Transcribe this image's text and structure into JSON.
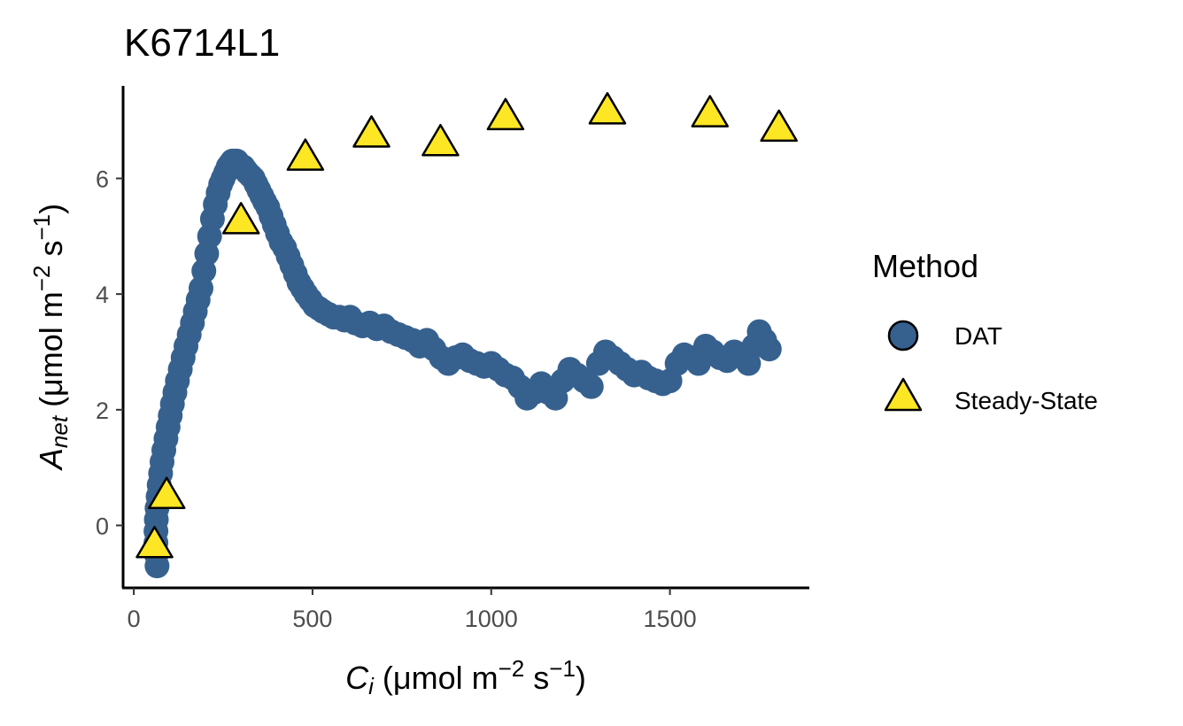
{
  "chart_data": {
    "type": "scatter",
    "title": "K6714L1",
    "xlabel": {
      "main": "C",
      "sub": "i",
      "unit_open": " (μmol m",
      "sup1": "−2",
      "unit_mid": " s",
      "sup2": "−1",
      "unit_close": ")"
    },
    "ylabel": {
      "main": "A",
      "sub": "net",
      "unit_open": " (μmol m",
      "sup1": "−2",
      "unit_mid": " s",
      "sup2": "−1",
      "unit_close": ")"
    },
    "xlim": [
      -30,
      1890
    ],
    "ylim": [
      -1.08,
      7.6
    ],
    "x_ticks": [
      0,
      500,
      1000,
      1500
    ],
    "x_tick_labels": [
      "0",
      "500",
      "1000",
      "1500"
    ],
    "y_ticks": [
      0,
      2,
      4,
      6
    ],
    "y_tick_labels": [
      "0",
      "2",
      "4",
      "6"
    ],
    "grid": false,
    "legend": {
      "title": "Method",
      "position": "right",
      "entries": [
        {
          "label": "DAT",
          "shape": "circle",
          "color": "#36618f"
        },
        {
          "label": "Steady-State",
          "shape": "triangle",
          "color": "#fde725"
        }
      ]
    },
    "series": [
      {
        "name": "DAT",
        "shape": "circle",
        "color": "#36618f",
        "x": [
          65,
          63,
          62,
          62,
          63,
          65,
          68,
          71,
          75,
          79,
          84,
          90,
          96,
          102,
          108,
          115,
          122,
          130,
          138,
          146,
          155,
          164,
          172,
          180,
          188,
          196,
          204,
          212,
          220,
          228,
          236,
          243,
          250,
          257,
          264,
          270,
          276,
          282,
          288,
          294,
          300,
          306,
          312,
          318,
          326,
          334,
          342,
          350,
          358,
          366,
          375,
          384,
          393,
          402,
          412,
          422,
          432,
          442,
          452,
          462,
          472,
          482,
          494,
          506,
          518,
          530,
          545,
          560,
          575,
          590,
          605,
          620,
          640,
          660,
          680,
          700,
          720,
          740,
          760,
          780,
          800,
          820,
          840,
          860,
          880,
          900,
          920,
          940,
          960,
          980,
          1000,
          1020,
          1040,
          1060,
          1080,
          1100,
          1120,
          1140,
          1160,
          1180,
          1200,
          1220,
          1240,
          1260,
          1280,
          1300,
          1320,
          1340,
          1360,
          1380,
          1400,
          1420,
          1440,
          1460,
          1480,
          1500,
          1520,
          1540,
          1560,
          1580,
          1600,
          1620,
          1640,
          1660,
          1680,
          1700,
          1720,
          1735,
          1750,
          1765,
          1778
        ],
        "y": [
          -0.7,
          -0.5,
          -0.3,
          -0.1,
          0.1,
          0.3,
          0.5,
          0.7,
          0.9,
          1.1,
          1.3,
          1.5,
          1.7,
          1.9,
          2.1,
          2.3,
          2.5,
          2.7,
          2.9,
          3.1,
          3.3,
          3.5,
          3.7,
          3.9,
          4.1,
          4.4,
          4.7,
          5.0,
          5.3,
          5.55,
          5.75,
          5.9,
          6.0,
          6.1,
          6.2,
          6.25,
          6.3,
          6.3,
          6.3,
          6.25,
          6.2,
          6.2,
          6.15,
          6.1,
          6.05,
          6.0,
          5.9,
          5.8,
          5.7,
          5.6,
          5.5,
          5.35,
          5.2,
          5.05,
          4.9,
          4.8,
          4.65,
          4.5,
          4.35,
          4.2,
          4.1,
          4.0,
          3.9,
          3.8,
          3.75,
          3.7,
          3.65,
          3.6,
          3.6,
          3.55,
          3.6,
          3.5,
          3.45,
          3.5,
          3.4,
          3.45,
          3.35,
          3.3,
          3.25,
          3.2,
          3.1,
          3.2,
          3.05,
          2.9,
          2.8,
          2.9,
          2.95,
          2.85,
          2.8,
          2.75,
          2.8,
          2.7,
          2.6,
          2.55,
          2.4,
          2.2,
          2.3,
          2.45,
          2.3,
          2.2,
          2.5,
          2.7,
          2.6,
          2.5,
          2.4,
          2.8,
          3.0,
          2.9,
          2.8,
          2.7,
          2.6,
          2.65,
          2.55,
          2.5,
          2.45,
          2.5,
          2.8,
          2.95,
          2.9,
          2.8,
          3.1,
          3.0,
          2.9,
          2.85,
          3.0,
          2.95,
          2.8,
          3.1,
          3.35,
          3.2,
          3.05
        ]
      },
      {
        "name": "Steady-State",
        "shape": "triangle",
        "color": "#fde725",
        "x": [
          58,
          92,
          300,
          480,
          665,
          858,
          1040,
          1325,
          1612,
          1805
        ],
        "y": [
          -0.35,
          0.5,
          5.25,
          6.35,
          6.75,
          6.6,
          7.05,
          7.15,
          7.1,
          6.85
        ]
      }
    ]
  }
}
